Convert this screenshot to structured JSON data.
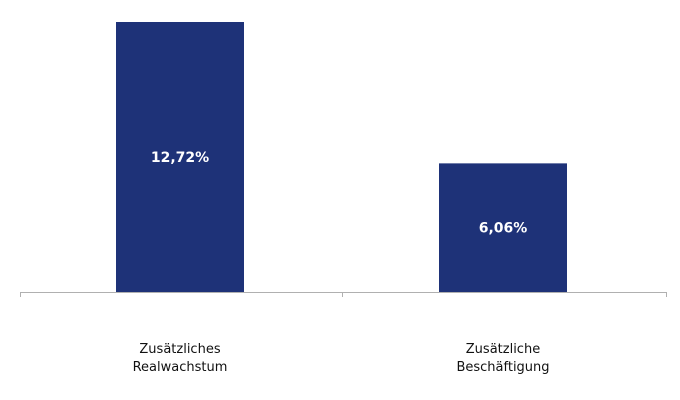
{
  "chart_data": {
    "type": "bar",
    "categories": [
      [
        "Zusätzliches",
        "Realwachstum"
      ],
      [
        "Zusätzliche",
        "Beschäftigung"
      ]
    ],
    "values": [
      12.72,
      6.06
    ],
    "data_labels": [
      "12,72%",
      "6,06%"
    ],
    "title": "",
    "xlabel": "",
    "ylabel": "",
    "ylim": [
      0,
      12.72
    ],
    "grid": false,
    "bar_color": "#1e3278",
    "axis_color": "#b0b0b0"
  }
}
